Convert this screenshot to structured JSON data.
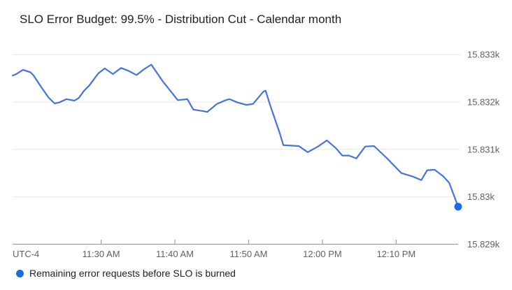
{
  "page": {
    "background": "#ffffff"
  },
  "chart_data": {
    "type": "line",
    "title": "SLO Error Budget: 99.5% - Distribution Cut - Calendar month",
    "legend_position": "bottom-left",
    "grid": "horizontal-only",
    "x_axis": {
      "timezone_label": "UTC-4",
      "start_time": "11:18 AM",
      "end_time": "12:19 PM",
      "domain_minutes": [
        0,
        60.4
      ],
      "label_color": "#616161",
      "axis_color": "#9e9e9e",
      "ticks": [
        {
          "t": 12,
          "label": "11:30 AM"
        },
        {
          "t": 22,
          "label": "11:40 AM"
        },
        {
          "t": 32,
          "label": "11:50 AM"
        },
        {
          "t": 42,
          "label": "12:00 PM"
        },
        {
          "t": 52,
          "label": "12:10 PM"
        }
      ]
    },
    "y_axis": {
      "domain": [
        15828.99,
        15833.21
      ],
      "label_color": "#616161",
      "grid_color": "#ececec",
      "ticks": [
        {
          "v": 15833,
          "label": "15.833k"
        },
        {
          "v": 15832,
          "label": "15.832k"
        },
        {
          "v": 15831,
          "label": "15.831k"
        },
        {
          "v": 15830,
          "label": "15.83k"
        },
        {
          "v": 15829,
          "label": "15.829k"
        }
      ]
    },
    "series": [
      {
        "name": "Remaining error requests before SLO is burned",
        "color": "#4673d7",
        "endpoint_color": "#1a6ce0",
        "points_unit": "[minutes after 11:18 AM, remaining error requests]",
        "points": [
          [
            0.0,
            15832.56
          ],
          [
            0.5,
            15832.59
          ],
          [
            1.4,
            15832.68
          ],
          [
            2.4,
            15832.63
          ],
          [
            2.8,
            15832.57
          ],
          [
            4.0,
            15832.29
          ],
          [
            4.9,
            15832.09
          ],
          [
            5.7,
            15831.97
          ],
          [
            6.3,
            15831.99
          ],
          [
            7.3,
            15832.06
          ],
          [
            8.4,
            15832.03
          ],
          [
            9.0,
            15832.09
          ],
          [
            9.7,
            15832.24
          ],
          [
            10.4,
            15832.35
          ],
          [
            11.6,
            15832.6
          ],
          [
            12.5,
            15832.71
          ],
          [
            13.6,
            15832.59
          ],
          [
            14.7,
            15832.72
          ],
          [
            15.7,
            15832.66
          ],
          [
            16.8,
            15832.57
          ],
          [
            17.8,
            15832.69
          ],
          [
            18.8,
            15832.79
          ],
          [
            20.4,
            15832.43
          ],
          [
            22.4,
            15832.04
          ],
          [
            23.7,
            15832.06
          ],
          [
            24.5,
            15831.84
          ],
          [
            25.8,
            15831.81
          ],
          [
            26.4,
            15831.79
          ],
          [
            27.7,
            15831.96
          ],
          [
            28.9,
            15832.04
          ],
          [
            29.4,
            15832.06
          ],
          [
            30.5,
            15831.99
          ],
          [
            31.7,
            15831.94
          ],
          [
            32.6,
            15831.96
          ],
          [
            34.0,
            15832.22
          ],
          [
            34.3,
            15832.24
          ],
          [
            34.9,
            15831.94
          ],
          [
            36.2,
            15831.35
          ],
          [
            36.7,
            15831.09
          ],
          [
            38.8,
            15831.07
          ],
          [
            40.0,
            15830.94
          ],
          [
            41.4,
            15831.06
          ],
          [
            42.6,
            15831.19
          ],
          [
            43.8,
            15831.03
          ],
          [
            44.7,
            15830.87
          ],
          [
            45.6,
            15830.87
          ],
          [
            46.6,
            15830.81
          ],
          [
            47.8,
            15831.06
          ],
          [
            49.0,
            15831.07
          ],
          [
            50.7,
            15830.82
          ],
          [
            52.7,
            15830.5
          ],
          [
            54.2,
            15830.43
          ],
          [
            55.4,
            15830.35
          ],
          [
            56.2,
            15830.56
          ],
          [
            57.2,
            15830.57
          ],
          [
            58.4,
            15830.43
          ],
          [
            59.2,
            15830.29
          ],
          [
            60.4,
            15829.79
          ]
        ]
      }
    ]
  },
  "legend": {
    "dot_color": "#1a6ce0"
  }
}
